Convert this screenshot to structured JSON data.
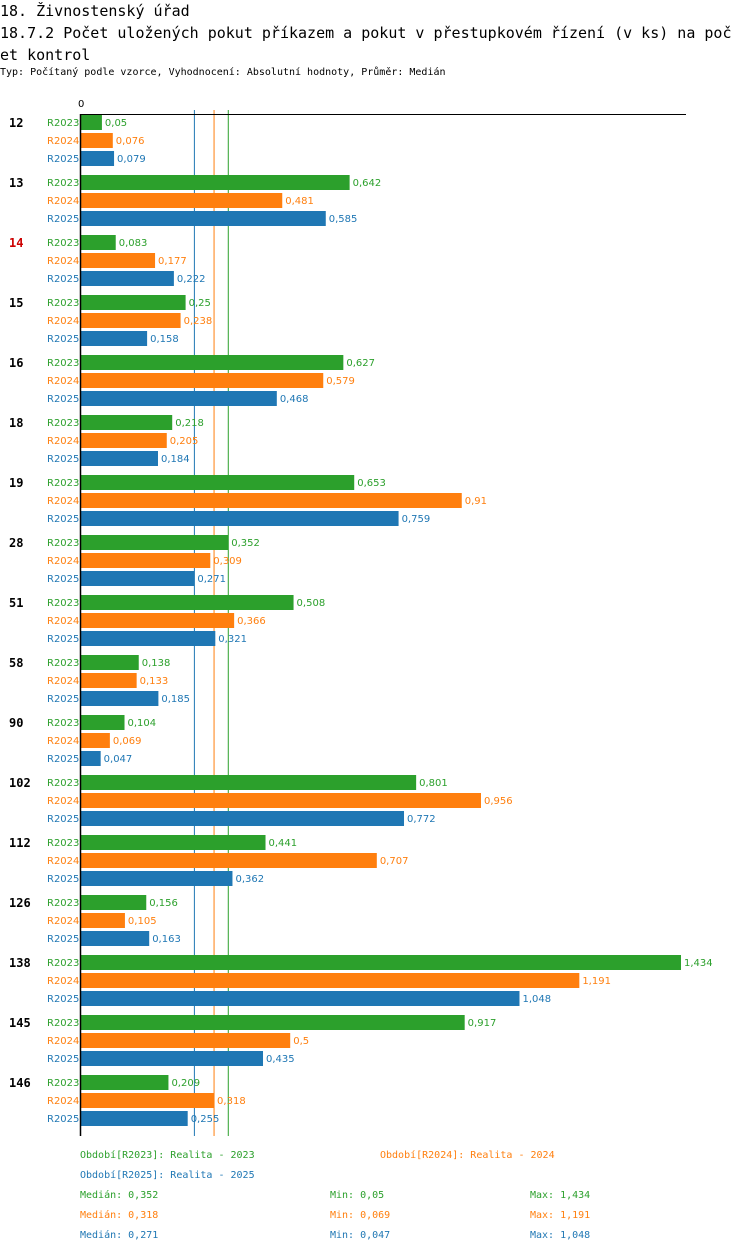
{
  "title_line1": "18. Živnostenský úřad",
  "title_line2": "18.7.2 Počet uložených pokut příkazem a pokut v přestupkovém řízení (v ks) na poč",
  "title_line3": "et kontrol",
  "subtitle": "Typ: Počítaný podle vzorce, Vyhodnocení: Absolutní hodnoty, Průměr: Medián",
  "chart_data": {
    "type": "bar",
    "orientation": "horizontal",
    "axis_zero_label": "0",
    "xlim": [
      0,
      1.434
    ],
    "categories": [
      "12",
      "13",
      "14",
      "15",
      "16",
      "18",
      "19",
      "28",
      "51",
      "58",
      "90",
      "102",
      "112",
      "126",
      "138",
      "145",
      "146"
    ],
    "highlight_category": "14",
    "highlight_color": "#cc0000",
    "series": [
      {
        "name": "R2023",
        "color": "#2ca02c",
        "values": [
          0.05,
          0.642,
          0.083,
          0.25,
          0.627,
          0.218,
          0.653,
          0.352,
          0.508,
          0.138,
          0.104,
          0.801,
          0.441,
          0.156,
          1.434,
          0.917,
          0.209
        ],
        "labels": [
          "0,05",
          "0,642",
          "0,083",
          "0,25",
          "0,627",
          "0,218",
          "0,653",
          "0,352",
          "0,508",
          "0,138",
          "0,104",
          "0,801",
          "0,441",
          "0,156",
          "1,434",
          "0,917",
          "0,209"
        ],
        "median": 0.352
      },
      {
        "name": "R2024",
        "color": "#ff7f0e",
        "values": [
          0.076,
          0.481,
          0.177,
          0.238,
          0.579,
          0.205,
          0.91,
          0.309,
          0.366,
          0.133,
          0.069,
          0.956,
          0.707,
          0.105,
          1.191,
          0.5,
          0.318
        ],
        "labels": [
          "0,076",
          "0,481",
          "0,177",
          "0,238",
          "0,579",
          "0,205",
          "0,91",
          "0,309",
          "0,366",
          "0,133",
          "0,069",
          "0,956",
          "0,707",
          "0,105",
          "1,191",
          "0,5",
          "0,318"
        ],
        "median": 0.318
      },
      {
        "name": "R2025",
        "color": "#1f77b4",
        "values": [
          0.079,
          0.585,
          0.222,
          0.158,
          0.468,
          0.184,
          0.759,
          0.271,
          0.321,
          0.185,
          0.047,
          0.772,
          0.362,
          0.163,
          1.048,
          0.435,
          0.255
        ],
        "labels": [
          "0,079",
          "0,585",
          "0,222",
          "0,158",
          "0,468",
          "0,184",
          "0,759",
          "0,271",
          "0,321",
          "0,185",
          "0,047",
          "0,772",
          "0,362",
          "0,163",
          "1,048",
          "0,435",
          "0,255"
        ],
        "median": 0.271
      }
    ]
  },
  "legend": {
    "period_2023": "Období[R2023]: Realita - 2023",
    "period_2024": "Období[R2024]: Realita - 2024",
    "period_2025": "Období[R2025]: Realita - 2025",
    "stats": [
      {
        "median": "Medián: 0,352",
        "min": "Min: 0,05",
        "max": "Max: 1,434",
        "color": "#2ca02c"
      },
      {
        "median": "Medián: 0,318",
        "min": "Min: 0,069",
        "max": "Max: 1,191",
        "color": "#ff7f0e"
      },
      {
        "median": "Medián: 0,271",
        "min": "Min: 0,047",
        "max": "Max: 1,048",
        "color": "#1f77b4"
      }
    ]
  }
}
